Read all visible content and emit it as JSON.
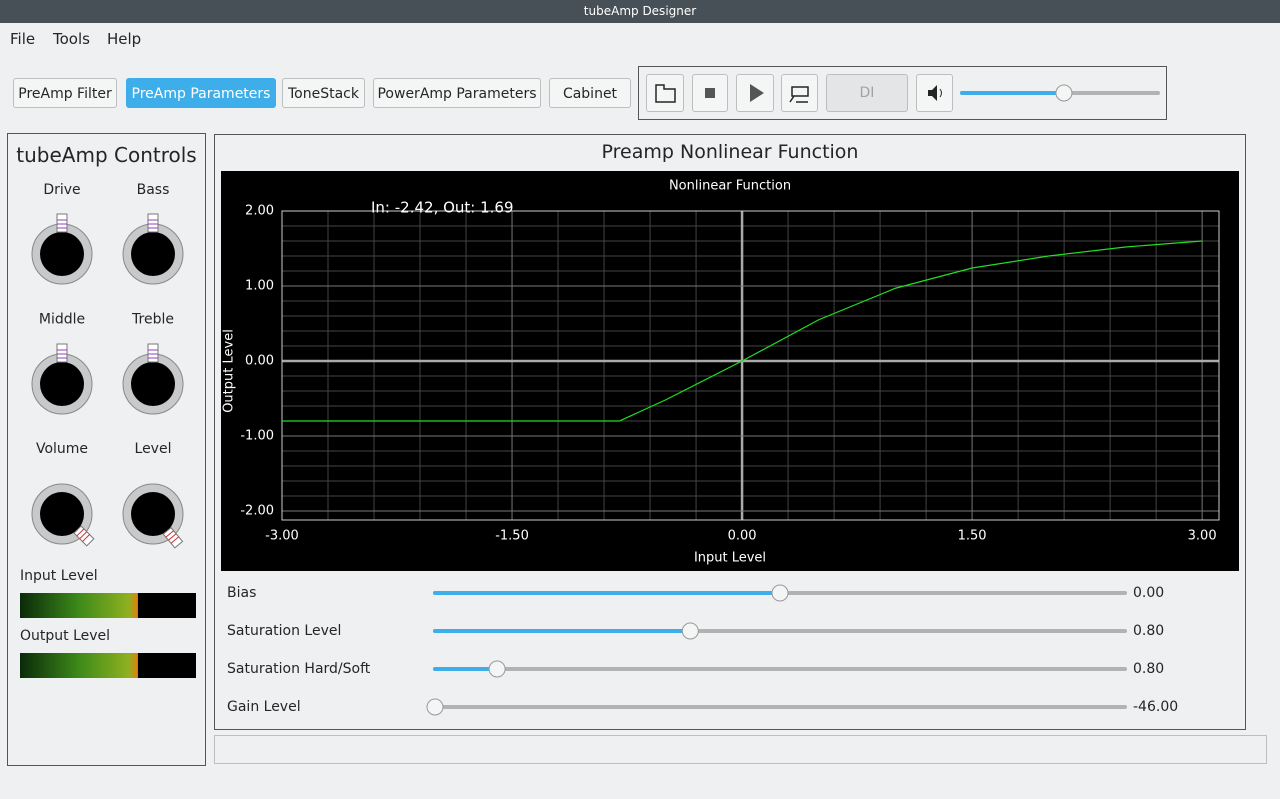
{
  "window": {
    "title": "tubeAmp Designer"
  },
  "menu": [
    "File",
    "Tools",
    "Help"
  ],
  "tabs": [
    "PreAmp Filter",
    "PreAmp Parameters",
    "ToneStack",
    "PowerAmp Parameters",
    "Cabinet"
  ],
  "active_tab": 1,
  "transport": {
    "di": "DI",
    "volume_position": 0.52
  },
  "controls": {
    "title": "tubeAmp Controls",
    "knobs": [
      {
        "label": "Drive",
        "angle": 0
      },
      {
        "label": "Bass",
        "angle": 0
      },
      {
        "label": "Middle",
        "angle": 0
      },
      {
        "label": "Treble",
        "angle": 0
      },
      {
        "label": "Volume",
        "angle": 135
      },
      {
        "label": "Level",
        "angle": 140
      }
    ],
    "meters": [
      {
        "label": "Input Level",
        "level": 0.67
      },
      {
        "label": "Output Level",
        "level": 0.67
      }
    ]
  },
  "panel": {
    "title": "Preamp Nonlinear Function"
  },
  "chart_data": {
    "type": "line",
    "title": "Nonlinear Function",
    "annotation": "In: -2.42, Out: 1.69",
    "x_label": "Input Level",
    "y_label": "Output Level",
    "x": [
      -3,
      -0.8,
      -0.5,
      0,
      0.5,
      1.0,
      1.5,
      2.0,
      2.5,
      3.0
    ],
    "series": [
      {
        "name": "Nonlinear",
        "color": "#22dd22",
        "values": [
          -0.8,
          -0.8,
          -0.52,
          0,
          0.55,
          0.97,
          1.24,
          1.4,
          1.52,
          1.6
        ]
      }
    ],
    "xlim": [
      -3,
      3.11
    ],
    "ylim": [
      -2.12,
      2
    ],
    "xticks": [
      {
        "value": -3,
        "label": "-3.00"
      },
      {
        "value": -1.5,
        "label": "-1.50"
      },
      {
        "value": 0,
        "label": "0.00"
      },
      {
        "value": 1.5,
        "label": "1.50"
      },
      {
        "value": 3,
        "label": "3.00"
      }
    ],
    "yticks": [
      {
        "value": -2,
        "label": "-2.00"
      },
      {
        "value": -1,
        "label": "-1.00"
      },
      {
        "value": 0,
        "label": "0.00"
      },
      {
        "value": 1,
        "label": "1.00"
      },
      {
        "value": 2,
        "label": "2.00"
      }
    ],
    "grid": true,
    "grid_divisions": 5
  },
  "sliders": {
    "labels": [
      "Bias",
      "Saturation Level",
      "Saturation Hard/Soft",
      "Gain Level"
    ],
    "values": [
      0,
      0.8,
      0.8,
      -46
    ],
    "value_labels": [
      "0.00",
      "0.80",
      "0.80",
      "-46.00"
    ],
    "positions": [
      0.5,
      0.37,
      0.09,
      0
    ]
  }
}
